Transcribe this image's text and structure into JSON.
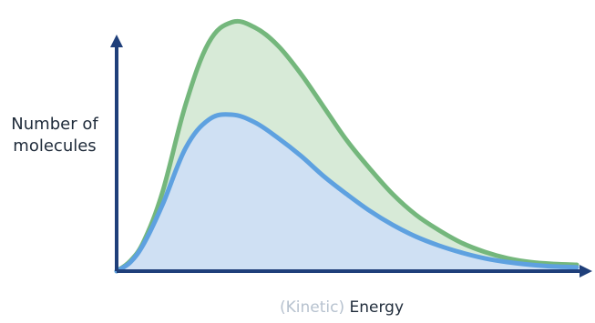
{
  "chart_data": {
    "type": "area",
    "title": "",
    "xlabel_prefix": "(Kinetic)",
    "xlabel_main": "Energy",
    "ylabel_line1": "Number of",
    "ylabel_line2": "molecules",
    "xlim": [
      0,
      10
    ],
    "ylim": [
      0,
      10
    ],
    "grid": false,
    "legend": "none",
    "series": [
      {
        "color": "#74b77c",
        "fill": "#d7ead7",
        "x": [
          0,
          0.3,
          0.6,
          1,
          1.5,
          2,
          2.5,
          3,
          3.5,
          4,
          4.5,
          5,
          5.5,
          6,
          6.5,
          7,
          7.5,
          8,
          8.5,
          9,
          9.5,
          10
        ],
        "y": [
          0,
          0.4,
          1.2,
          3.1,
          6.5,
          8.9,
          9.7,
          9.5,
          8.8,
          7.7,
          6.4,
          5.1,
          4.0,
          3.0,
          2.2,
          1.6,
          1.1,
          0.75,
          0.5,
          0.35,
          0.28,
          0.25
        ]
      },
      {
        "color": "#5ea1e0",
        "fill": "#cfe0f3",
        "x": [
          0,
          0.3,
          0.6,
          1,
          1.5,
          2,
          2.5,
          3,
          3.5,
          4,
          4.5,
          5,
          5.5,
          6,
          6.5,
          7,
          7.5,
          8,
          8.5,
          9,
          9.5,
          10
        ],
        "y": [
          0,
          0.35,
          1.1,
          2.6,
          4.8,
          5.9,
          6.1,
          5.8,
          5.2,
          4.5,
          3.7,
          3.0,
          2.35,
          1.8,
          1.35,
          1.0,
          0.72,
          0.5,
          0.35,
          0.25,
          0.18,
          0.15
        ]
      }
    ],
    "axis_color": "#1f3f7a"
  }
}
